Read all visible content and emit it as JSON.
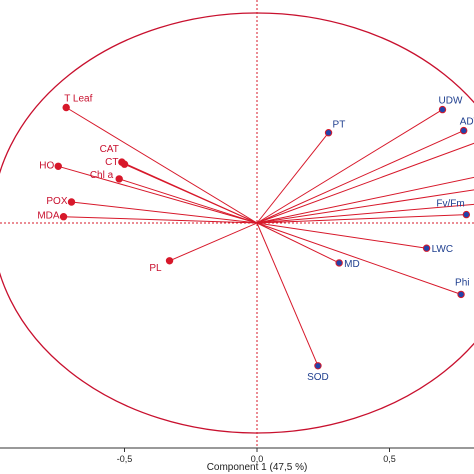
{
  "chart_data": {
    "type": "scatter",
    "subtype": "pca-loading-plot",
    "xlabel": "Component 1  (47,5 %)",
    "ylabel": "",
    "xlim": [
      -1.0,
      1.0
    ],
    "ylim": [
      -1.0,
      1.0
    ],
    "xticks": [
      {
        "value": -0.5,
        "label": "-0,5"
      },
      {
        "value": 0,
        "label": "0,0"
      },
      {
        "value": 0.5,
        "label": "0,5"
      }
    ],
    "unit_circle": true,
    "reference_lines": {
      "x": 0,
      "y": 0,
      "style": "dotted"
    },
    "colors": {
      "line": "#d7182a",
      "circle": "#c8102e",
      "point_red": "#d7182a",
      "point_blue": "#2244aa",
      "label_red": "#c8102e",
      "label_blue": "#1f3f8f"
    },
    "points": [
      {
        "label": "T Leaf",
        "x": -0.72,
        "y": 0.55,
        "group": "red"
      },
      {
        "label": "CAT",
        "x": -0.51,
        "y": 0.29,
        "group": "red"
      },
      {
        "label": "CT",
        "x": -0.5,
        "y": 0.28,
        "group": "red"
      },
      {
        "label": "Chl a",
        "x": -0.52,
        "y": 0.21,
        "group": "red"
      },
      {
        "label": "HO",
        "x": -0.75,
        "y": 0.27,
        "group": "red"
      },
      {
        "label": "POX",
        "x": -0.7,
        "y": 0.1,
        "group": "red"
      },
      {
        "label": "MDA",
        "x": -0.73,
        "y": 0.03,
        "group": "red"
      },
      {
        "label": "PL",
        "x": -0.33,
        "y": -0.18,
        "group": "red"
      },
      {
        "label": "PT",
        "x": 0.27,
        "y": 0.43,
        "group": "blue"
      },
      {
        "label": "UDW",
        "x": 0.7,
        "y": 0.54,
        "group": "blue"
      },
      {
        "label": "ADW",
        "x": 0.78,
        "y": 0.44,
        "group": "blue"
      },
      {
        "label": "Fv/Fm",
        "x": 0.79,
        "y": 0.04,
        "group": "blue"
      },
      {
        "label": "LWC",
        "x": 0.64,
        "y": -0.12,
        "group": "blue"
      },
      {
        "label": "MD",
        "x": 0.31,
        "y": -0.19,
        "group": "blue"
      },
      {
        "label": "Phi",
        "x": 0.77,
        "y": -0.34,
        "group": "blue"
      },
      {
        "label": "SOD",
        "x": 0.23,
        "y": -0.68,
        "group": "blue"
      }
    ],
    "unlabeled_vectors": [
      {
        "x": 0.82,
        "y": 0.38
      },
      {
        "x": 0.83,
        "y": 0.22
      },
      {
        "x": 0.83,
        "y": 0.16
      },
      {
        "x": 0.83,
        "y": 0.09
      }
    ]
  }
}
